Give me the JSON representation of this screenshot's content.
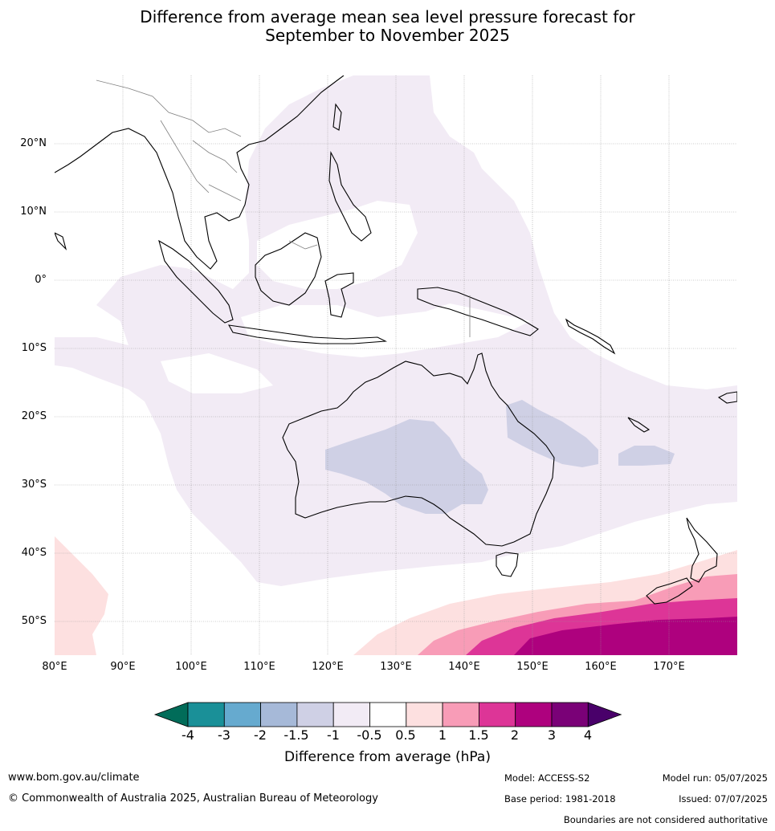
{
  "title": {
    "line1": "Difference from average mean sea level pressure forecast for",
    "line2": "September to November 2025"
  },
  "axes": {
    "lat_labels": [
      "20°N",
      "10°N",
      "0°",
      "10°S",
      "20°S",
      "30°S",
      "40°S",
      "50°S"
    ],
    "lon_labels": [
      "80°E",
      "90°E",
      "100°E",
      "110°E",
      "120°E",
      "130°E",
      "140°E",
      "150°E",
      "160°E",
      "170°E"
    ]
  },
  "colorbar": {
    "ticks": [
      "-4",
      "-3",
      "-2",
      "-1.5",
      "-1",
      "-0.5",
      "0.5",
      "1",
      "1.5",
      "2",
      "3",
      "4"
    ],
    "colors": [
      "#1a9098",
      "#66aacf",
      "#a6b9d8",
      "#cfd0e5",
      "#f2ebf5",
      "#ffffff",
      "#fde0e0",
      "#f89cb7",
      "#dd3597",
      "#ae017e",
      "#7a0177"
    ],
    "under_color": "#016c59",
    "over_color": "#49006a",
    "label": "Difference from average (hPa)"
  },
  "footer": {
    "website": "www.bom.gov.au/climate",
    "copyright": "© Commonwealth of Australia 2025, Australian Bureau of Meteorology",
    "model": "Model: ACCESS-S2",
    "base_period": "Base period: 1981-2018",
    "model_run": "Model run: 05/07/2025",
    "issued": "Issued: 07/07/2025",
    "disclaimer": "Boundaries are not considered authoritative"
  },
  "map_colors": {
    "neg_light": "#f2ebf5",
    "neg_mid": "#cfd0e5",
    "pos_light": "#fde0e0",
    "pos_mid": "#f89cb7",
    "pos_strong": "#dd3597",
    "pos_max": "#ae017e",
    "coast": "#000000",
    "border": "#808080",
    "grid": "#999999"
  }
}
